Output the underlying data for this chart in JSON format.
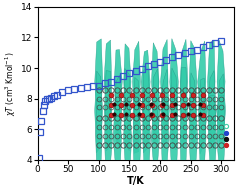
{
  "xlabel": "T/K",
  "ylabel": "$\\chi T$ (cm$^3$ Kmol$^{-1}$)",
  "xlim": [
    0,
    320
  ],
  "ylim": [
    4,
    14
  ],
  "yticks": [
    4,
    6,
    8,
    10,
    12,
    14
  ],
  "xticks": [
    0,
    50,
    100,
    150,
    200,
    250,
    300
  ],
  "blue_squares_T": [
    2,
    4,
    6,
    8,
    10,
    12,
    15,
    18,
    22,
    27,
    32,
    40,
    50,
    60,
    70,
    80,
    90,
    100,
    110,
    120,
    130,
    140,
    150,
    160,
    170,
    180,
    190,
    200,
    210,
    220,
    230,
    240,
    250,
    260,
    270,
    280,
    290,
    300
  ],
  "blue_squares_chiT": [
    4.1,
    5.8,
    6.5,
    7.2,
    7.6,
    7.85,
    7.95,
    8.0,
    8.05,
    8.15,
    8.25,
    8.4,
    8.55,
    8.65,
    8.7,
    8.75,
    8.8,
    8.85,
    9.0,
    9.1,
    9.3,
    9.5,
    9.65,
    9.8,
    9.95,
    10.1,
    10.25,
    10.4,
    10.55,
    10.7,
    10.85,
    11.0,
    11.1,
    11.2,
    11.35,
    11.5,
    11.65,
    11.8
  ],
  "teal_color": "#33ccaa",
  "circle_color": "#444444",
  "red_color": "#cc2222",
  "dark_red_color": "#880000",
  "bg_color": "#ffffff",
  "legend_items": [
    {
      "color": "#44ccaa",
      "filled": false
    },
    {
      "color": "#2244cc",
      "filled": true
    },
    {
      "color": "#111111",
      "filled": true
    },
    {
      "color": "#cc2222",
      "filled": true
    }
  ]
}
